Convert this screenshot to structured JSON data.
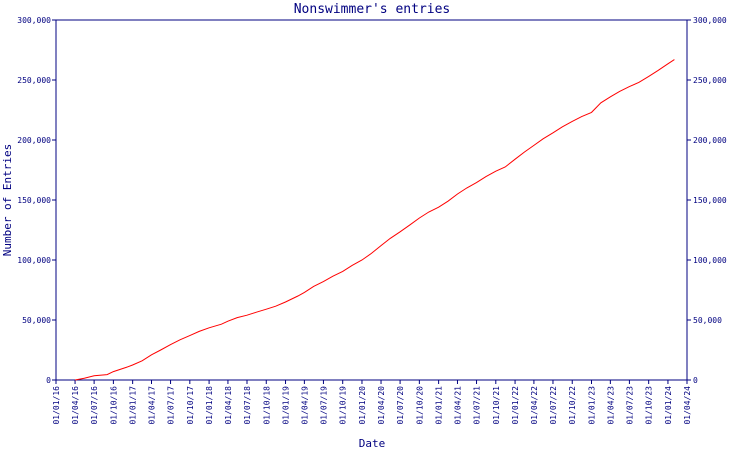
{
  "chart_data": {
    "type": "line",
    "title": "Nonswimmer's entries",
    "xlabel": "Date",
    "ylabel": "Number of Entries",
    "xlim": [
      "2016-01-01",
      "2024-04-01"
    ],
    "ylim": [
      0,
      300000
    ],
    "grid": false,
    "legend": "none",
    "colors": {
      "line": "#ff0000",
      "axis": "#000080",
      "text": "#000080"
    },
    "x_ticks": [
      "01/01/16",
      "01/04/16",
      "01/07/16",
      "01/10/16",
      "01/01/17",
      "01/04/17",
      "01/07/17",
      "01/10/17",
      "01/01/18",
      "01/04/18",
      "01/07/18",
      "01/10/18",
      "01/01/19",
      "01/04/19",
      "01/07/19",
      "01/10/19",
      "01/01/20",
      "01/04/20",
      "01/07/20",
      "01/10/20",
      "01/01/21",
      "01/04/21",
      "01/07/21",
      "01/10/21",
      "01/01/22",
      "01/04/22",
      "01/07/22",
      "01/10/22",
      "01/01/23",
      "01/04/23",
      "01/07/23",
      "01/10/23",
      "01/01/24",
      "01/04/24"
    ],
    "y_ticks": [
      {
        "value": 0,
        "label": "0"
      },
      {
        "value": 50000,
        "label": "50,000"
      },
      {
        "value": 100000,
        "label": "100,000"
      },
      {
        "value": 150000,
        "label": "150,000"
      },
      {
        "value": 200000,
        "label": "200,000"
      },
      {
        "value": 250000,
        "label": "250,000"
      },
      {
        "value": 300000,
        "label": "300,000"
      }
    ],
    "series": [
      {
        "x": [
          "2016-04-01",
          "2016-05-15",
          "2016-07-01",
          "2016-09-01",
          "2016-10-01",
          "2016-12-01",
          "2017-01-01",
          "2017-02-15",
          "2017-04-01",
          "2017-05-15",
          "2017-07-01",
          "2017-08-15",
          "2017-10-01",
          "2017-11-15",
          "2018-01-01",
          "2018-03-01",
          "2018-04-01",
          "2018-05-15",
          "2018-07-01",
          "2018-08-15",
          "2018-10-01",
          "2018-11-15",
          "2019-01-01",
          "2019-03-01",
          "2019-04-01",
          "2019-05-15",
          "2019-07-01",
          "2019-08-15",
          "2019-10-01",
          "2019-11-15",
          "2020-01-01",
          "2020-02-15",
          "2020-04-01",
          "2020-05-15",
          "2020-07-01",
          "2020-08-15",
          "2020-10-01",
          "2020-11-15",
          "2021-01-01",
          "2021-02-15",
          "2021-04-01",
          "2021-05-15",
          "2021-07-01",
          "2021-08-15",
          "2021-10-01",
          "2021-11-15",
          "2022-01-01",
          "2022-02-15",
          "2022-04-01",
          "2022-05-15",
          "2022-07-01",
          "2022-08-15",
          "2022-10-01",
          "2022-11-15",
          "2023-01-01",
          "2023-02-15",
          "2023-04-01",
          "2023-05-15",
          "2023-07-01",
          "2023-08-15",
          "2023-10-01",
          "2023-11-15",
          "2024-01-01",
          "2024-02-01"
        ],
        "y": [
          0,
          1500,
          3500,
          4500,
          7000,
          10500,
          12500,
          16000,
          21000,
          25000,
          29500,
          33500,
          37000,
          40500,
          43500,
          46500,
          49000,
          52000,
          54000,
          56500,
          59000,
          61500,
          65000,
          70000,
          73000,
          78000,
          82000,
          86500,
          90500,
          95500,
          100000,
          105500,
          112000,
          118000,
          123500,
          129000,
          135000,
          140000,
          144000,
          149000,
          155000,
          160000,
          164500,
          169500,
          174000,
          177500,
          184000,
          190000,
          195500,
          201000,
          206000,
          211000,
          215500,
          219500,
          223000,
          231000,
          236000,
          240500,
          244500,
          248000,
          253000,
          258000,
          263500,
          267000
        ]
      }
    ]
  }
}
